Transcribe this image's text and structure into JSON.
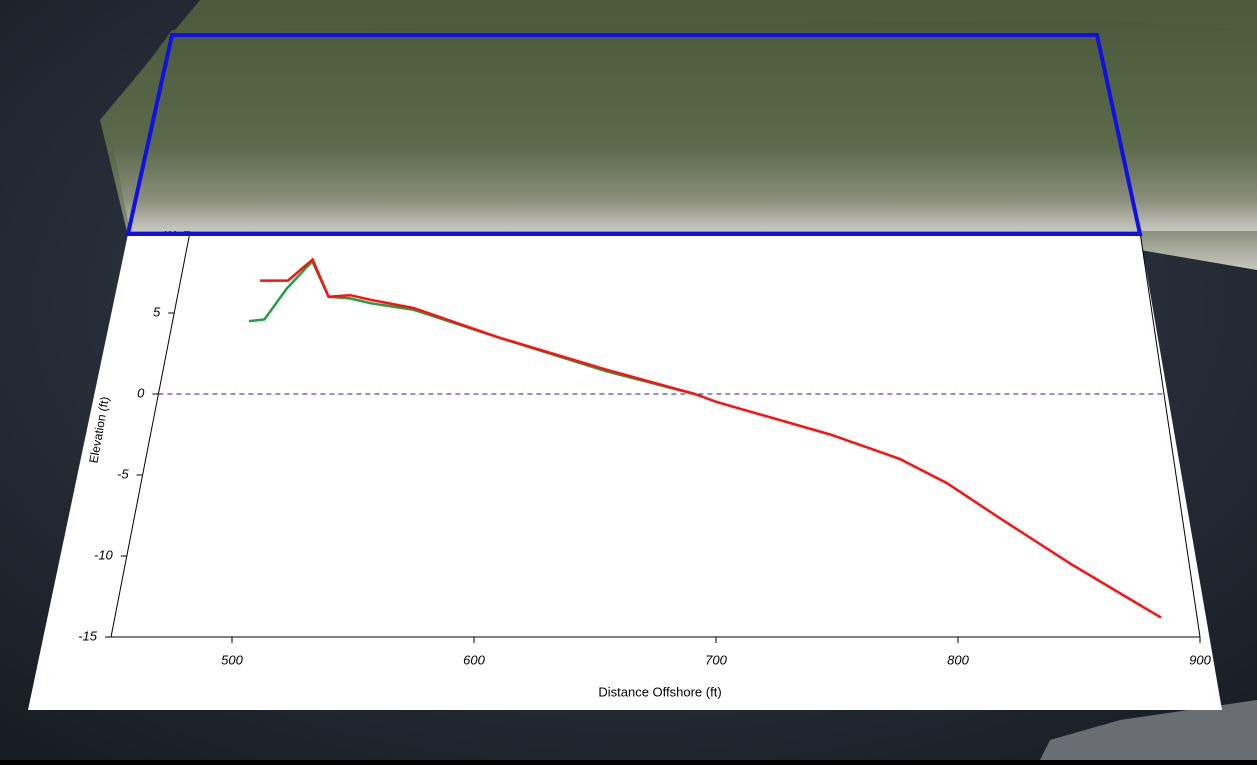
{
  "chart_data": {
    "type": "line",
    "xlabel": "Distance Offshore (ft)",
    "ylabel": "Elevation (ft)",
    "xlim": [
      450,
      900
    ],
    "ylim": [
      -15,
      10
    ],
    "xticks": [
      500,
      600,
      700,
      800,
      900
    ],
    "yticks": [
      -15,
      -10,
      -5,
      0,
      5,
      10
    ],
    "hline": 0,
    "hline_color": "#2020a0",
    "series": [
      {
        "color": "#20a040",
        "x": [
          485,
          492,
          500,
          510,
          520,
          530,
          540,
          560,
          600,
          650,
          690
        ],
        "values": [
          4.5,
          4.6,
          6.5,
          8.2,
          6,
          5.9,
          5.6,
          5.2,
          3.5,
          1.4,
          0
        ]
      },
      {
        "color": "#ff1010",
        "x": [
          487,
          500,
          510,
          520,
          530,
          540,
          560,
          600,
          650,
          690,
          700,
          750,
          780,
          800,
          820,
          850,
          885
        ],
        "values": [
          7,
          7,
          8.3,
          6,
          6.1,
          5.8,
          5.3,
          3.5,
          1.5,
          0,
          -0.5,
          -2.5,
          -4,
          -5.5,
          -7.5,
          -10.5,
          -13.8
        ]
      }
    ]
  }
}
